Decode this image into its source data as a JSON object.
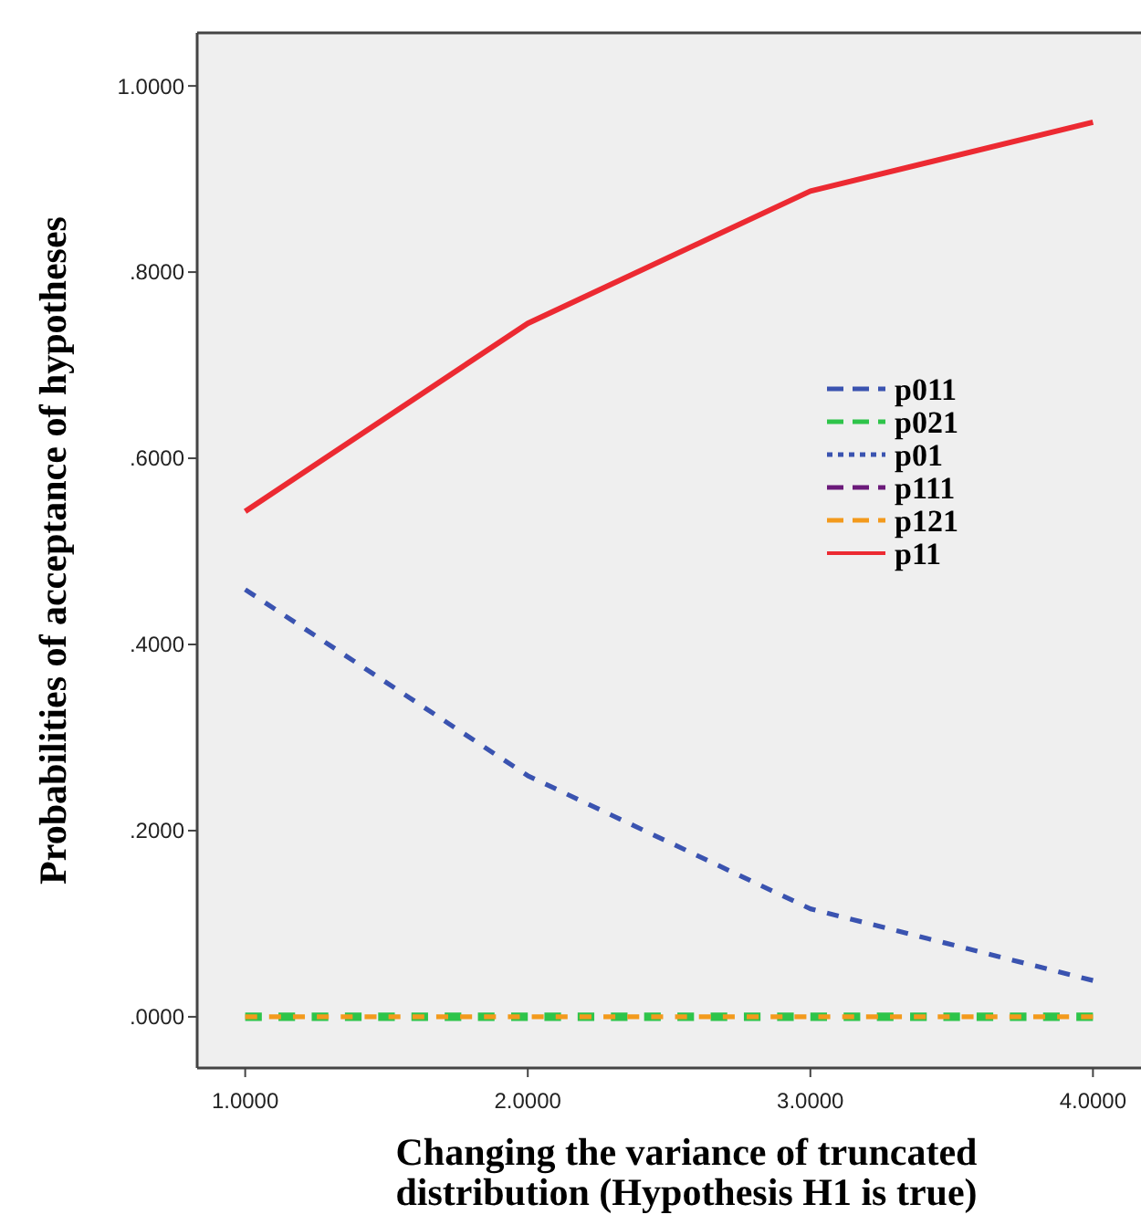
{
  "chart_data": {
    "type": "line",
    "xlabel": "Changing the variance of truncated distribution (Hypothesis H1 is true)",
    "ylabel": "Probabilities of acceptance of hypotheses",
    "x": [
      1,
      2,
      3,
      4
    ],
    "series": [
      {
        "name": "p011",
        "color": "#3a53b0",
        "line_style": "dashed",
        "values": [
          0.459,
          0.259,
          0.116,
          0.039
        ]
      },
      {
        "name": "p021",
        "color": "#2ec44a",
        "line_style": "dashed",
        "values": [
          0,
          0,
          0,
          0
        ]
      },
      {
        "name": "p01",
        "color": "#3a53b0",
        "line_style": "dotted",
        "values": [
          null,
          null,
          null,
          null
        ]
      },
      {
        "name": "p111",
        "color": "#6b1a7a",
        "line_style": "dashed",
        "values": [
          null,
          null,
          null,
          null
        ]
      },
      {
        "name": "p121",
        "color": "#f39a1c",
        "line_style": "dashed",
        "values": [
          0,
          0,
          0,
          0
        ]
      },
      {
        "name": "p11",
        "color": "#ec2a32",
        "line_style": "solid",
        "values": [
          0.543,
          0.745,
          0.887,
          0.961
        ]
      }
    ],
    "xlim": [
      0.83,
      4.17
    ],
    "ylim": [
      -0.055,
      1.057
    ],
    "xticks": [
      {
        "value": 1,
        "label": "1.0000"
      },
      {
        "value": 2,
        "label": "2.0000"
      },
      {
        "value": 3,
        "label": "3.0000"
      },
      {
        "value": 4,
        "label": "4.0000"
      }
    ],
    "yticks": [
      {
        "value": 0,
        "label": ".0000"
      },
      {
        "value": 0.2,
        "label": ".2000"
      },
      {
        "value": 0.4,
        "label": ".4000"
      },
      {
        "value": 0.6,
        "label": ".6000"
      },
      {
        "value": 0.8,
        "label": ".8000"
      },
      {
        "value": 1,
        "label": "1.0000"
      }
    ],
    "grid": false,
    "legend": "right",
    "marker": "none"
  }
}
